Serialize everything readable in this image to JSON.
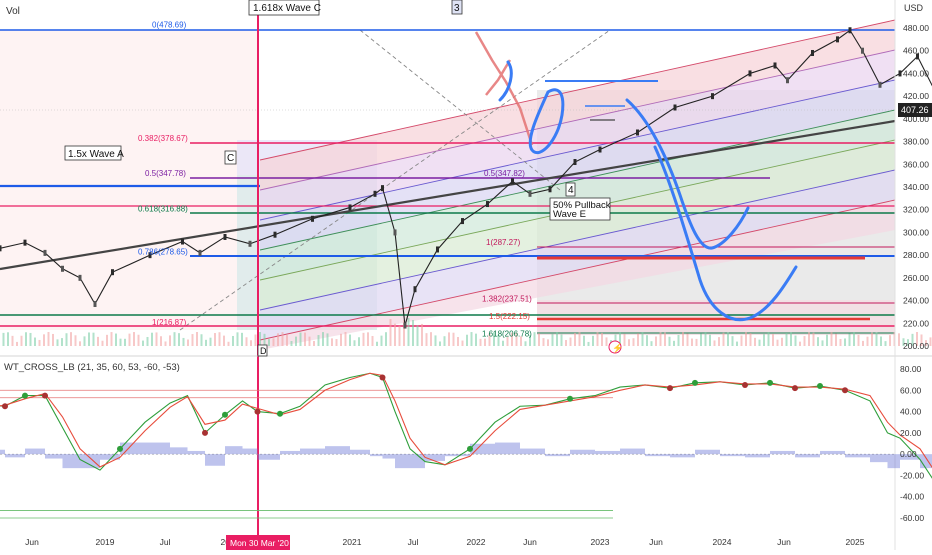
{
  "header": {
    "vol_label": "Vol",
    "currency": "USD"
  },
  "chart_data": [
    {
      "type": "line",
      "x_label_ticks": [
        "Jun",
        "2019",
        "Jul",
        "2020",
        "2021",
        "Jul",
        "2022",
        "Jun",
        "2023",
        "Jun",
        "2024",
        "Jun",
        "2025"
      ],
      "ylim": [
        200,
        490
      ],
      "yticks": [
        200,
        220,
        240,
        260,
        280,
        300,
        320,
        340,
        360,
        380,
        400,
        420,
        440,
        460,
        480
      ],
      "last_price": "407.26",
      "crosshair_date": "Mon 30 Mar '20",
      "price_series": [
        {
          "x": 2018.3,
          "y": 272
        },
        {
          "x": 2018.4,
          "y": 276
        },
        {
          "x": 2018.5,
          "y": 278
        },
        {
          "x": 2018.6,
          "y": 286
        },
        {
          "x": 2018.7,
          "y": 291
        },
        {
          "x": 2018.78,
          "y": 282
        },
        {
          "x": 2018.85,
          "y": 268
        },
        {
          "x": 2018.92,
          "y": 260
        },
        {
          "x": 2018.98,
          "y": 237
        },
        {
          "x": 2019.05,
          "y": 265
        },
        {
          "x": 2019.2,
          "y": 280
        },
        {
          "x": 2019.33,
          "y": 292
        },
        {
          "x": 2019.4,
          "y": 282
        },
        {
          "x": 2019.5,
          "y": 296
        },
        {
          "x": 2019.6,
          "y": 290
        },
        {
          "x": 2019.7,
          "y": 298
        },
        {
          "x": 2019.85,
          "y": 312
        },
        {
          "x": 2020.0,
          "y": 322
        },
        {
          "x": 2020.1,
          "y": 334
        },
        {
          "x": 2020.13,
          "y": 339
        },
        {
          "x": 2020.18,
          "y": 300
        },
        {
          "x": 2020.22,
          "y": 218
        },
        {
          "x": 2020.26,
          "y": 250
        },
        {
          "x": 2020.35,
          "y": 285
        },
        {
          "x": 2020.45,
          "y": 310
        },
        {
          "x": 2020.55,
          "y": 325
        },
        {
          "x": 2020.65,
          "y": 345
        },
        {
          "x": 2020.72,
          "y": 334
        },
        {
          "x": 2020.8,
          "y": 338
        },
        {
          "x": 2020.9,
          "y": 362
        },
        {
          "x": 2021.0,
          "y": 373
        },
        {
          "x": 2021.15,
          "y": 388
        },
        {
          "x": 2021.3,
          "y": 410
        },
        {
          "x": 2021.45,
          "y": 420
        },
        {
          "x": 2021.6,
          "y": 440
        },
        {
          "x": 2021.7,
          "y": 447
        },
        {
          "x": 2021.75,
          "y": 434
        },
        {
          "x": 2021.85,
          "y": 458
        },
        {
          "x": 2021.95,
          "y": 470
        },
        {
          "x": 2022.0,
          "y": 478
        },
        {
          "x": 2022.05,
          "y": 460
        },
        {
          "x": 2022.12,
          "y": 430
        },
        {
          "x": 2022.2,
          "y": 440
        },
        {
          "x": 2022.27,
          "y": 455
        },
        {
          "x": 2022.35,
          "y": 420
        },
        {
          "x": 2022.42,
          "y": 400
        },
        {
          "x": 2022.47,
          "y": 365
        },
        {
          "x": 2022.55,
          "y": 385
        },
        {
          "x": 2022.62,
          "y": 425
        },
        {
          "x": 2022.68,
          "y": 405
        },
        {
          "x": 2022.73,
          "y": 375
        },
        {
          "x": 2022.78,
          "y": 350
        },
        {
          "x": 2022.85,
          "y": 372
        },
        {
          "x": 2022.9,
          "y": 390
        },
        {
          "x": 2022.95,
          "y": 388
        },
        {
          "x": 2023.0,
          "y": 382
        },
        {
          "x": 2023.05,
          "y": 400
        },
        {
          "x": 2023.1,
          "y": 410
        },
        {
          "x": 2023.13,
          "y": 407
        }
      ],
      "fib_labels": [
        {
          "label": "0(478.69)",
          "value": 478.69
        },
        {
          "label": "0.382(378.67)",
          "value": 378.67
        },
        {
          "label": "0.5(347.78)",
          "value": 347.78
        },
        {
          "label": "0.618(316.88)",
          "value": 316.88
        },
        {
          "label": "0.786(278.65)",
          "value": 278.65
        },
        {
          "label": "1(216.87)",
          "value": 216.87
        },
        {
          "label": "0.5(347.82)",
          "value": 347.82
        },
        {
          "label": "1(287.27)",
          "value": 287.27
        },
        {
          "label": "1.382(237.51)",
          "value": 237.51
        },
        {
          "label": "1.5(222.15)",
          "value": 222.15
        },
        {
          "label": "1.618(206.78)",
          "value": 206.78
        }
      ],
      "annotations": [
        "1.618x Wave C",
        "3",
        "C",
        "1.5x Wave A",
        "4",
        "50% Pullback",
        "Wave E",
        "D"
      ]
    },
    {
      "type": "line",
      "indicator_label": "WT_CROSS_LB (21, 35, 60, 53, -60, -53)",
      "ylim": [
        -68,
        88
      ],
      "yticks": [
        80.0,
        60.0,
        40.0,
        20.0,
        0.0,
        -20.0,
        -40.0,
        -60.0
      ],
      "levels": [
        60,
        53,
        -60,
        -53
      ],
      "series": [
        {
          "values": [
            {
              "x": 2018.3,
              "y": 65
            },
            {
              "x": 2018.4,
              "y": 45
            },
            {
              "x": 2018.48,
              "y": 40
            },
            {
              "x": 2018.55,
              "y": 46
            },
            {
              "x": 2018.62,
              "y": 45
            },
            {
              "x": 2018.7,
              "y": 55
            },
            {
              "x": 2018.78,
              "y": 55
            },
            {
              "x": 2018.85,
              "y": 25
            },
            {
              "x": 2018.92,
              "y": -5
            },
            {
              "x": 2019.0,
              "y": -15
            },
            {
              "x": 2019.08,
              "y": 5
            },
            {
              "x": 2019.18,
              "y": 30
            },
            {
              "x": 2019.28,
              "y": 48
            },
            {
              "x": 2019.35,
              "y": 55
            },
            {
              "x": 2019.42,
              "y": 20
            },
            {
              "x": 2019.5,
              "y": 37
            },
            {
              "x": 2019.57,
              "y": 50
            },
            {
              "x": 2019.63,
              "y": 40
            },
            {
              "x": 2019.72,
              "y": 38
            },
            {
              "x": 2019.8,
              "y": 45
            },
            {
              "x": 2019.9,
              "y": 65
            },
            {
              "x": 2020.0,
              "y": 72
            },
            {
              "x": 2020.08,
              "y": 76
            },
            {
              "x": 2020.13,
              "y": 72
            },
            {
              "x": 2020.18,
              "y": 40
            },
            {
              "x": 2020.24,
              "y": 5
            },
            {
              "x": 2020.3,
              "y": -7
            },
            {
              "x": 2020.38,
              "y": -10
            },
            {
              "x": 2020.48,
              "y": 5
            },
            {
              "x": 2020.58,
              "y": 30
            },
            {
              "x": 2020.68,
              "y": 45
            },
            {
              "x": 2020.78,
              "y": 46
            },
            {
              "x": 2020.88,
              "y": 52
            },
            {
              "x": 2020.98,
              "y": 55
            },
            {
              "x": 2021.08,
              "y": 63
            },
            {
              "x": 2021.18,
              "y": 65
            },
            {
              "x": 2021.28,
              "y": 62
            },
            {
              "x": 2021.38,
              "y": 67
            },
            {
              "x": 2021.48,
              "y": 68
            },
            {
              "x": 2021.58,
              "y": 65
            },
            {
              "x": 2021.68,
              "y": 67
            },
            {
              "x": 2021.78,
              "y": 62
            },
            {
              "x": 2021.88,
              "y": 64
            },
            {
              "x": 2021.98,
              "y": 60
            },
            {
              "x": 2022.08,
              "y": 50
            },
            {
              "x": 2022.15,
              "y": 20
            },
            {
              "x": 2022.2,
              "y": 15
            },
            {
              "x": 2022.28,
              "y": -5
            },
            {
              "x": 2022.35,
              "y": -30
            },
            {
              "x": 2022.42,
              "y": -45
            },
            {
              "x": 2022.5,
              "y": -40
            },
            {
              "x": 2022.55,
              "y": -30
            },
            {
              "x": 2022.62,
              "y": -38
            },
            {
              "x": 2022.7,
              "y": -48
            },
            {
              "x": 2022.75,
              "y": -50
            },
            {
              "x": 2022.82,
              "y": -40
            },
            {
              "x": 2022.9,
              "y": -32
            },
            {
              "x": 2022.97,
              "y": -28
            },
            {
              "x": 2023.05,
              "y": -15
            },
            {
              "x": 2023.1,
              "y": -5
            }
          ]
        },
        {
          "values": [
            {
              "x": 2018.3,
              "y": 68
            },
            {
              "x": 2018.4,
              "y": 50
            },
            {
              "x": 2018.48,
              "y": 42
            },
            {
              "x": 2018.55,
              "y": 44
            },
            {
              "x": 2018.62,
              "y": 46
            },
            {
              "x": 2018.7,
              "y": 52
            },
            {
              "x": 2018.78,
              "y": 57
            },
            {
              "x": 2018.85,
              "y": 35
            },
            {
              "x": 2018.92,
              "y": 5
            },
            {
              "x": 2019.0,
              "y": -12
            },
            {
              "x": 2019.08,
              "y": -3
            },
            {
              "x": 2019.18,
              "y": 22
            },
            {
              "x": 2019.28,
              "y": 44
            },
            {
              "x": 2019.35,
              "y": 54
            },
            {
              "x": 2019.42,
              "y": 28
            },
            {
              "x": 2019.5,
              "y": 32
            },
            {
              "x": 2019.57,
              "y": 47
            },
            {
              "x": 2019.63,
              "y": 43
            },
            {
              "x": 2019.72,
              "y": 37
            },
            {
              "x": 2019.8,
              "y": 42
            },
            {
              "x": 2019.9,
              "y": 60
            },
            {
              "x": 2020.0,
              "y": 70
            },
            {
              "x": 2020.08,
              "y": 76
            },
            {
              "x": 2020.13,
              "y": 74
            },
            {
              "x": 2020.18,
              "y": 50
            },
            {
              "x": 2020.24,
              "y": 15
            },
            {
              "x": 2020.3,
              "y": -3
            },
            {
              "x": 2020.38,
              "y": -10
            },
            {
              "x": 2020.48,
              "y": -2
            },
            {
              "x": 2020.58,
              "y": 22
            },
            {
              "x": 2020.68,
              "y": 42
            },
            {
              "x": 2020.78,
              "y": 46
            },
            {
              "x": 2020.88,
              "y": 50
            },
            {
              "x": 2020.98,
              "y": 54
            },
            {
              "x": 2021.08,
              "y": 60
            },
            {
              "x": 2021.18,
              "y": 65
            },
            {
              "x": 2021.28,
              "y": 63
            },
            {
              "x": 2021.38,
              "y": 65
            },
            {
              "x": 2021.48,
              "y": 68
            },
            {
              "x": 2021.58,
              "y": 66
            },
            {
              "x": 2021.68,
              "y": 66
            },
            {
              "x": 2021.78,
              "y": 63
            },
            {
              "x": 2021.88,
              "y": 63
            },
            {
              "x": 2021.98,
              "y": 61
            },
            {
              "x": 2022.08,
              "y": 55
            },
            {
              "x": 2022.15,
              "y": 30
            },
            {
              "x": 2022.2,
              "y": 18
            },
            {
              "x": 2022.28,
              "y": 5
            },
            {
              "x": 2022.35,
              "y": -20
            },
            {
              "x": 2022.42,
              "y": -40
            },
            {
              "x": 2022.5,
              "y": -43
            },
            {
              "x": 2022.55,
              "y": -35
            },
            {
              "x": 2022.62,
              "y": -35
            },
            {
              "x": 2022.7,
              "y": -44
            },
            {
              "x": 2022.75,
              "y": -50
            },
            {
              "x": 2022.82,
              "y": -45
            },
            {
              "x": 2022.9,
              "y": -36
            },
            {
              "x": 2022.97,
              "y": -30
            },
            {
              "x": 2023.05,
              "y": -22
            },
            {
              "x": 2023.1,
              "y": -12
            }
          ]
        }
      ]
    }
  ],
  "colors": {
    "up": "#26a69a",
    "down": "#ef5350",
    "fib_red": "#e91e63",
    "fib_blue": "#1e5be8",
    "fib_purple": "#7b1fa2",
    "fib_green": "#0d7a4a",
    "projection": "#3a7cf5",
    "trend": "#444444",
    "crosshair": "#e91e63",
    "indicator_line_a": "#2e9e3a",
    "indicator_line_b": "#e74c3c",
    "indicator_hist": "#6f7ad6"
  }
}
